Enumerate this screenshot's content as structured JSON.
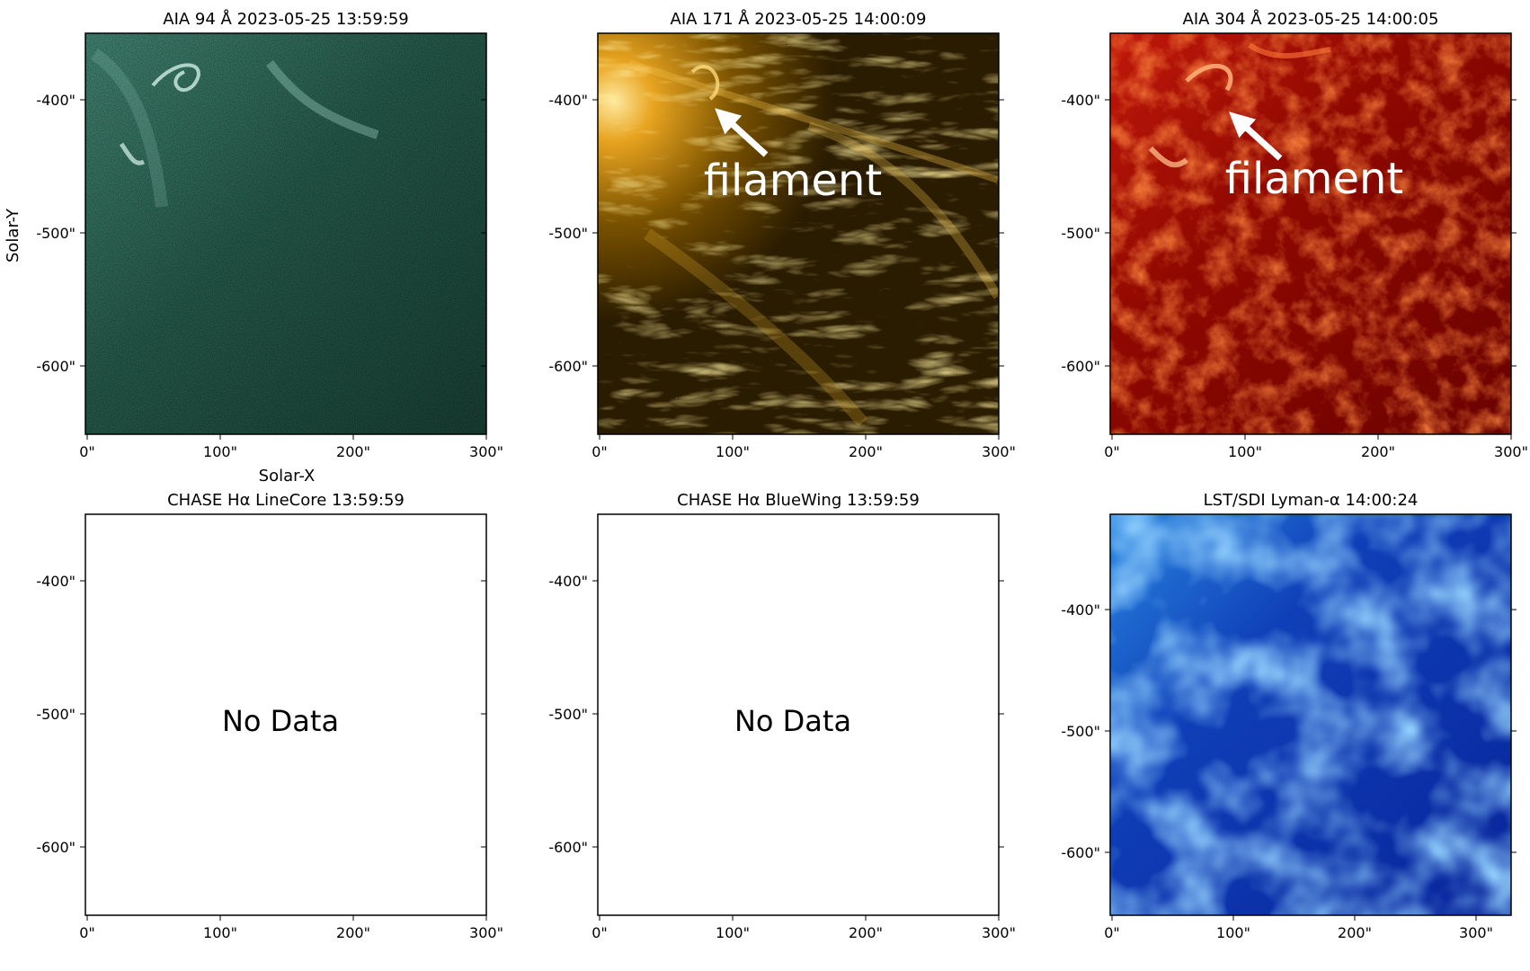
{
  "figure": {
    "ylabel": "Solar-Y",
    "xlabel": "Solar-X",
    "panels": [
      {
        "id": "aia94",
        "title": "AIA 94 Å 2023-05-25 13:59:59",
        "colormap": "sdoaia94",
        "colors": [
          "#0e2a22",
          "#2e7a62",
          "#7fc8b2",
          "#d9f4ec"
        ],
        "has_data": true,
        "x_ticks": [
          "0\"",
          "100\"",
          "200\"",
          "300\""
        ],
        "y_ticks": [
          "-400\"",
          "-500\"",
          "-600\""
        ],
        "annotation": ""
      },
      {
        "id": "aia171",
        "title": "AIA 171 Å 2023-05-25 14:00:09",
        "colormap": "sdoaia171",
        "colors": [
          "#1e1400",
          "#7a5200",
          "#d49a10",
          "#ffe9a0"
        ],
        "has_data": true,
        "x_ticks": [
          "0\"",
          "100\"",
          "200\"",
          "300\""
        ],
        "y_ticks": [
          "-400\"",
          "-500\"",
          "-600\""
        ],
        "annotation": "filament"
      },
      {
        "id": "aia304",
        "title": "AIA 304 Å 2023-05-25 14:00:05",
        "colormap": "sdoaia304",
        "colors": [
          "#4a0000",
          "#a80e00",
          "#e8501a",
          "#ffd7a8"
        ],
        "has_data": true,
        "x_ticks": [
          "0\"",
          "100\"",
          "200\"",
          "300\""
        ],
        "y_ticks": [
          "-400\"",
          "-500\"",
          "-600\""
        ],
        "annotation": "filament"
      },
      {
        "id": "chase_core",
        "title": "CHASE Hα LineCore 13:59:59",
        "has_data": false,
        "no_data_text": "No Data",
        "x_ticks": [
          "0\"",
          "100\"",
          "200\"",
          "300\""
        ],
        "y_ticks": [
          "-400\"",
          "-500\"",
          "-600\""
        ]
      },
      {
        "id": "chase_blue",
        "title": "CHASE Hα BlueWing 13:59:59",
        "has_data": false,
        "no_data_text": "No Data",
        "x_ticks": [
          "0\"",
          "100\"",
          "200\"",
          "300\""
        ],
        "y_ticks": [
          "-400\"",
          "-500\"",
          "-600\""
        ]
      },
      {
        "id": "lst_sdi",
        "title": "LST/SDI Lyman-α 14:00:24",
        "colormap": "blues",
        "colors": [
          "#061a7a",
          "#0c35b8",
          "#1e6fd6",
          "#46a8ee"
        ],
        "has_data": true,
        "x_ticks": [
          "0\"",
          "100\"",
          "200\"",
          "300\""
        ],
        "y_ticks": [
          "-400\"",
          "-500\"",
          "-600\""
        ],
        "annotation": ""
      }
    ]
  }
}
